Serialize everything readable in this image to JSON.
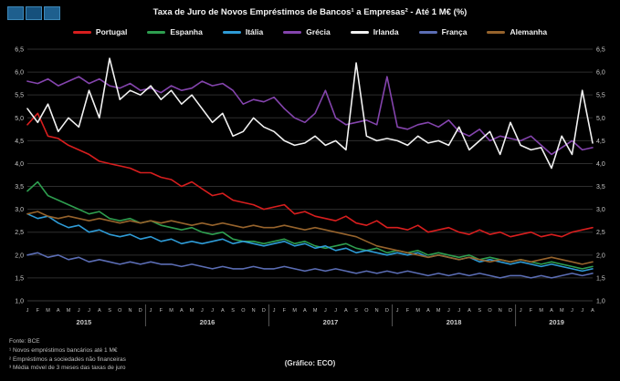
{
  "title": "Taxa de Juro de Novos Empréstimos de Bancos¹ a Empresas² - Até 1 M€ (%)",
  "footnotes": {
    "source": "Fonte: BCE",
    "lines": [
      "¹ Novos empréstimos bancários até 1 M€",
      "² Empréstimos a sociedades não financeiras",
      "³ Média móvel de 3 meses das taxas de juro"
    ]
  },
  "credit": "(Gráfico: ECO)",
  "chart_data": {
    "type": "line",
    "title": "Taxa de Juro de Novos Empréstimos de Bancos a Empresas - Até 1 M€ (%)",
    "xlabel": "",
    "ylabel": "",
    "y_min": 1.0,
    "y_max": 6.5,
    "y_step": 0.5,
    "grid": true,
    "legend_position": "top",
    "months": [
      "J",
      "F",
      "M",
      "A",
      "M",
      "J",
      "J",
      "A",
      "S",
      "O",
      "N",
      "D",
      "J",
      "F",
      "M",
      "A",
      "M",
      "J",
      "J",
      "A",
      "S",
      "O",
      "N",
      "D",
      "J",
      "F",
      "M",
      "A",
      "M",
      "J",
      "J",
      "A",
      "S",
      "O",
      "N",
      "D",
      "J",
      "F",
      "M",
      "A",
      "M",
      "J",
      "J",
      "A",
      "S",
      "O",
      "N",
      "D",
      "J",
      "F",
      "M",
      "A",
      "M",
      "J",
      "J",
      "A"
    ],
    "years": [
      {
        "label": "2015",
        "months": 12
      },
      {
        "label": "2016",
        "months": 12
      },
      {
        "label": "2017",
        "months": 12
      },
      {
        "label": "2018",
        "months": 12
      },
      {
        "label": "2019",
        "months": 8
      }
    ],
    "series": [
      {
        "name": "Portugal",
        "color": "#d81e1e",
        "values": [
          4.85,
          5.1,
          4.6,
          4.55,
          4.4,
          4.3,
          4.2,
          4.05,
          4.0,
          3.95,
          3.9,
          3.8,
          3.8,
          3.7,
          3.65,
          3.5,
          3.6,
          3.45,
          3.3,
          3.35,
          3.2,
          3.15,
          3.1,
          3.0,
          3.05,
          3.1,
          2.9,
          2.95,
          2.85,
          2.8,
          2.75,
          2.85,
          2.7,
          2.65,
          2.75,
          2.6,
          2.6,
          2.55,
          2.65,
          2.5,
          2.55,
          2.6,
          2.5,
          2.45,
          2.55,
          2.45,
          2.5,
          2.4,
          2.45,
          2.5,
          2.4,
          2.45,
          2.4,
          2.5,
          2.55,
          2.6
        ]
      },
      {
        "name": "Espanha",
        "color": "#2e9e4f",
        "values": [
          3.4,
          3.6,
          3.3,
          3.2,
          3.1,
          3.0,
          2.9,
          2.95,
          2.8,
          2.75,
          2.8,
          2.7,
          2.75,
          2.65,
          2.6,
          2.55,
          2.6,
          2.5,
          2.45,
          2.5,
          2.35,
          2.3,
          2.3,
          2.25,
          2.3,
          2.35,
          2.25,
          2.3,
          2.2,
          2.15,
          2.2,
          2.25,
          2.15,
          2.1,
          2.15,
          2.05,
          2.1,
          2.05,
          2.1,
          2.0,
          2.05,
          2.0,
          1.95,
          2.0,
          1.9,
          1.95,
          1.9,
          1.85,
          1.9,
          1.85,
          1.8,
          1.85,
          1.8,
          1.75,
          1.7,
          1.75
        ]
      },
      {
        "name": "Itália",
        "color": "#2e9bd6",
        "values": [
          2.9,
          2.8,
          2.85,
          2.7,
          2.6,
          2.65,
          2.5,
          2.55,
          2.45,
          2.4,
          2.45,
          2.35,
          2.4,
          2.3,
          2.35,
          2.25,
          2.3,
          2.25,
          2.3,
          2.35,
          2.25,
          2.3,
          2.25,
          2.2,
          2.25,
          2.3,
          2.2,
          2.25,
          2.15,
          2.2,
          2.1,
          2.15,
          2.05,
          2.1,
          2.05,
          2.0,
          2.05,
          2.0,
          2.05,
          1.95,
          2.0,
          1.95,
          1.9,
          1.95,
          1.85,
          1.9,
          1.85,
          1.8,
          1.85,
          1.8,
          1.75,
          1.8,
          1.75,
          1.7,
          1.65,
          1.7
        ]
      },
      {
        "name": "Grécia",
        "color": "#8444ad",
        "values": [
          5.8,
          5.75,
          5.85,
          5.7,
          5.8,
          5.9,
          5.75,
          5.85,
          5.7,
          5.65,
          5.75,
          5.6,
          5.65,
          5.55,
          5.7,
          5.6,
          5.65,
          5.8,
          5.7,
          5.75,
          5.6,
          5.3,
          5.4,
          5.35,
          5.45,
          5.2,
          5.0,
          4.9,
          5.1,
          5.6,
          5.0,
          4.85,
          4.9,
          4.95,
          4.85,
          5.9,
          4.8,
          4.75,
          4.85,
          4.9,
          4.8,
          4.95,
          4.7,
          4.6,
          4.75,
          4.5,
          4.6,
          4.55,
          4.5,
          4.6,
          4.4,
          4.2,
          4.35,
          4.5,
          4.3,
          4.35
        ]
      },
      {
        "name": "Irlanda",
        "color": "#f2f2f2",
        "values": [
          5.2,
          4.9,
          5.3,
          4.7,
          5.0,
          4.8,
          5.6,
          5.0,
          6.3,
          5.4,
          5.6,
          5.5,
          5.7,
          5.4,
          5.6,
          5.3,
          5.5,
          5.2,
          4.9,
          5.1,
          4.6,
          4.7,
          5.0,
          4.8,
          4.7,
          4.5,
          4.4,
          4.45,
          4.6,
          4.4,
          4.5,
          4.3,
          6.2,
          4.6,
          4.5,
          4.55,
          4.5,
          4.4,
          4.6,
          4.45,
          4.5,
          4.4,
          4.8,
          4.3,
          4.5,
          4.7,
          4.2,
          4.9,
          4.4,
          4.3,
          4.35,
          3.9,
          4.6,
          4.2,
          5.6,
          4.45
        ]
      },
      {
        "name": "França",
        "color": "#5b6db4",
        "values": [
          2.0,
          2.05,
          1.95,
          2.0,
          1.9,
          1.95,
          1.85,
          1.9,
          1.85,
          1.8,
          1.85,
          1.8,
          1.85,
          1.8,
          1.8,
          1.75,
          1.8,
          1.75,
          1.7,
          1.75,
          1.7,
          1.7,
          1.75,
          1.7,
          1.7,
          1.75,
          1.7,
          1.65,
          1.7,
          1.65,
          1.7,
          1.65,
          1.6,
          1.65,
          1.6,
          1.65,
          1.6,
          1.65,
          1.6,
          1.55,
          1.6,
          1.55,
          1.6,
          1.55,
          1.6,
          1.55,
          1.5,
          1.55,
          1.55,
          1.5,
          1.55,
          1.5,
          1.55,
          1.6,
          1.55,
          1.6
        ]
      },
      {
        "name": "Alemanha",
        "color": "#96632c",
        "values": [
          2.9,
          2.95,
          2.85,
          2.8,
          2.85,
          2.8,
          2.75,
          2.8,
          2.75,
          2.7,
          2.75,
          2.7,
          2.75,
          2.7,
          2.75,
          2.7,
          2.65,
          2.7,
          2.65,
          2.7,
          2.65,
          2.6,
          2.65,
          2.6,
          2.6,
          2.65,
          2.6,
          2.55,
          2.6,
          2.55,
          2.5,
          2.45,
          2.4,
          2.3,
          2.2,
          2.15,
          2.1,
          2.05,
          2.0,
          1.95,
          2.0,
          1.95,
          1.9,
          1.95,
          1.9,
          1.85,
          1.9,
          1.85,
          1.9,
          1.85,
          1.9,
          1.95,
          1.9,
          1.85,
          1.8,
          1.85
        ]
      }
    ]
  }
}
